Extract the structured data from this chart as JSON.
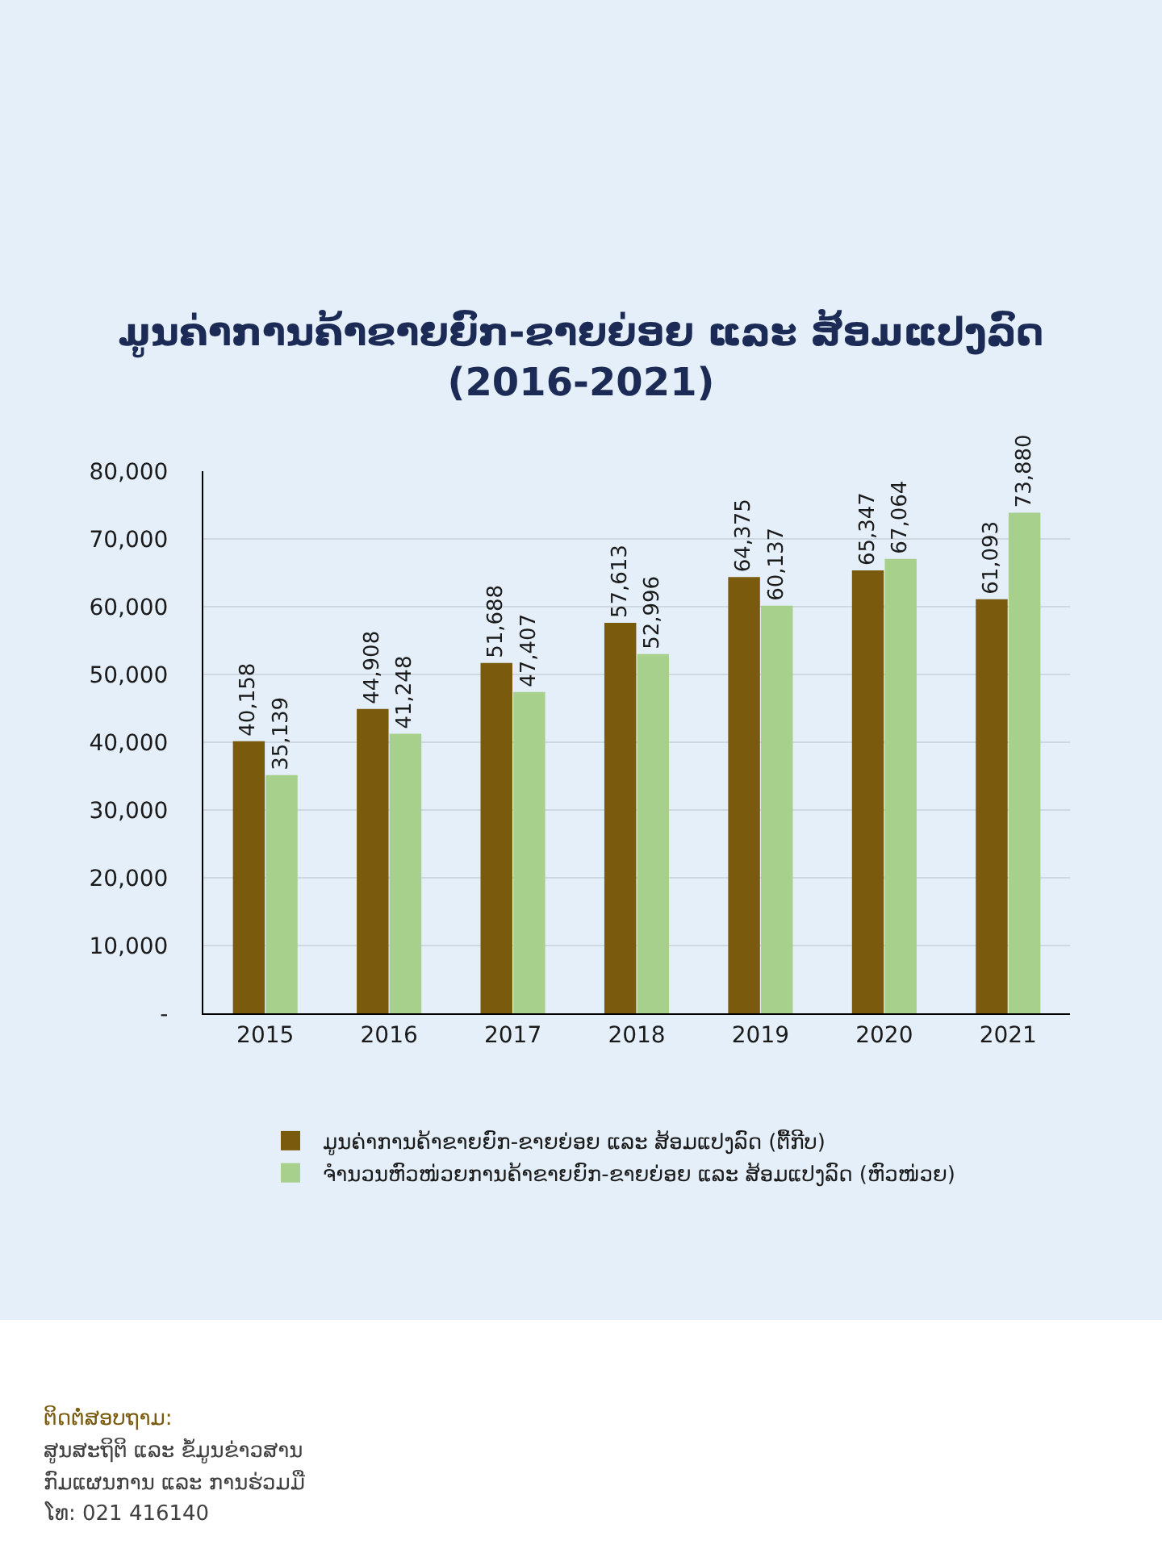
{
  "chart_data": {
    "type": "bar",
    "title": "ມູນຄ່າການຄ້າຂາຍຍົກ-ຂາຍຍ່ອຍ ແລະ ສ້ອມແປງລົດ\n(2016-2021)",
    "categories": [
      "2015",
      "2016",
      "2017",
      "2018",
      "2019",
      "2020",
      "2021"
    ],
    "series": [
      {
        "name": "ມູນຄ່າການຄ້າຂາຍຍົກ-ຂາຍຍ່ອຍ ແລະ ສ້ອມແປງລົດ (ຕື້ກີບ)",
        "color": "#7a5a0c",
        "values": [
          40158,
          44908,
          51688,
          57613,
          64375,
          65347,
          61093
        ],
        "value_labels": [
          "40,158",
          "44,908",
          "51,688",
          "57,613",
          "64,375",
          "65,347",
          "61,093"
        ]
      },
      {
        "name": "ຈຳນວນຫົວໜ່ວຍການຄ້າຂາຍຍົກ-ຂາຍຍ່ອຍ ແລະ ສ້ອມແປງລົດ (ຫົວໜ່ວຍ)",
        "color": "#a8d08d",
        "values": [
          35139,
          41248,
          47407,
          52996,
          60137,
          67064,
          73880
        ],
        "value_labels": [
          "35,139",
          "41,248",
          "47,407",
          "52,996",
          "60,137",
          "67,064",
          "73,880"
        ]
      }
    ],
    "ylim": [
      0,
      80000
    ],
    "yticks": [
      {
        "value": 0,
        "label": "-"
      },
      {
        "value": 10000,
        "label": "10,000"
      },
      {
        "value": 20000,
        "label": "20,000"
      },
      {
        "value": 30000,
        "label": "30,000"
      },
      {
        "value": 40000,
        "label": "40,000"
      },
      {
        "value": 50000,
        "label": "50,000"
      },
      {
        "value": 60000,
        "label": "60,000"
      },
      {
        "value": 70000,
        "label": "70,000"
      },
      {
        "value": 80000,
        "label": "80,000"
      }
    ],
    "grid": "y",
    "legend": "bottom",
    "annotations": [
      "ຕິດຕໍ່ສອບຖາມ:",
      "ສູນສະຖິຕິ ແລະ ຂໍ້ມູນຂ່າວສານ",
      "ກົມແຜນການ ແລະ ການຮ່ວມມື",
      "ໂທ: 021 416140"
    ]
  }
}
